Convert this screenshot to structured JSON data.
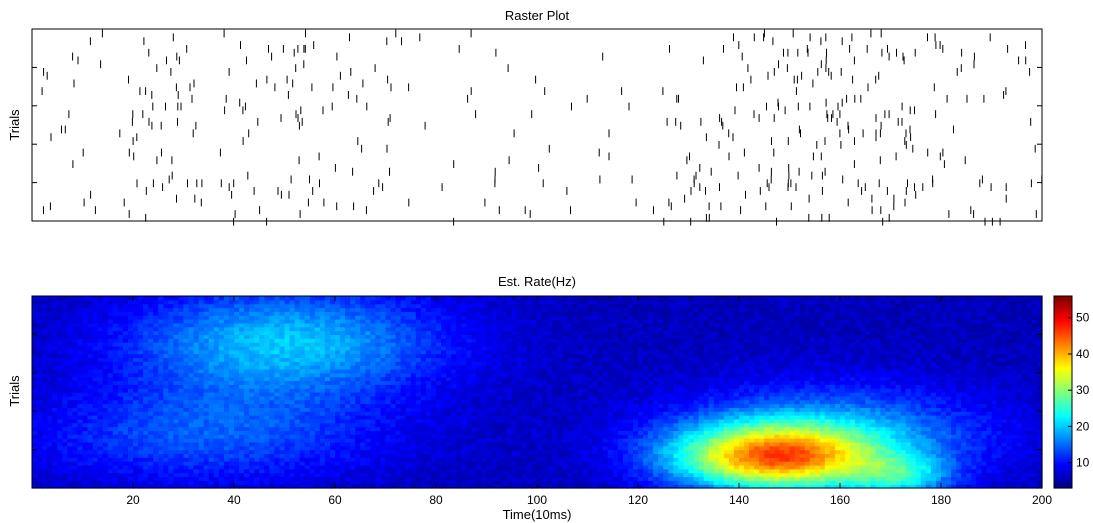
{
  "chart_data": [
    {
      "type": "raster",
      "title": "Raster Plot",
      "xlabel": "",
      "ylabel": "Trials",
      "xlim": [
        0,
        200
      ],
      "ylim": [
        0,
        50
      ],
      "yticks": [
        10,
        20,
        30,
        40
      ],
      "ytick_labels": [
        "",
        "",
        "",
        ""
      ],
      "xtick_labels": [],
      "grid": false,
      "spike_density_by_bin": [
        {
          "x_range": [
            0,
            20
          ],
          "rel": 0.25
        },
        {
          "x_range": [
            20,
            40
          ],
          "rel": 0.45
        },
        {
          "x_range": [
            40,
            60
          ],
          "rel": 0.55
        },
        {
          "x_range": [
            60,
            75
          ],
          "rel": 0.5
        },
        {
          "x_range": [
            75,
            100
          ],
          "rel": 0.15
        },
        {
          "x_range": [
            100,
            125
          ],
          "rel": 0.12
        },
        {
          "x_range": [
            125,
            145
          ],
          "rel": 0.55
        },
        {
          "x_range": [
            145,
            175
          ],
          "rel": 0.8
        },
        {
          "x_range": [
            175,
            200
          ],
          "rel": 0.3
        }
      ]
    },
    {
      "type": "heatmap",
      "title": "Est. Rate(Hz)",
      "xlabel": "Time(10ms)",
      "ylabel": "Trials",
      "xlim": [
        0,
        200
      ],
      "ylim": [
        0,
        50
      ],
      "xticks": [
        20,
        40,
        60,
        80,
        100,
        120,
        140,
        160,
        180,
        200
      ],
      "xtick_labels": [
        "20",
        "40",
        "60",
        "80",
        "100",
        "120",
        "140",
        "160",
        "180",
        "200"
      ],
      "yticks": [
        10,
        20,
        30,
        40
      ],
      "ytick_labels": [
        "",
        "",
        "",
        ""
      ],
      "colormap": "jet",
      "colorbar": {
        "clim": [
          3,
          56
        ],
        "ticks": [
          10,
          20,
          30,
          40,
          50
        ],
        "tick_labels": [
          "10",
          "20",
          "30",
          "40",
          "50"
        ]
      },
      "rate_components": [
        {
          "x": 50,
          "y": 38,
          "sx": 22,
          "sy": 10,
          "amp": 14
        },
        {
          "x": 35,
          "y": 14,
          "sx": 25,
          "sy": 9,
          "amp": 8
        },
        {
          "x": 147,
          "y": 8,
          "sx": 14,
          "sy": 6,
          "amp": 32
        },
        {
          "x": 172,
          "y": 3,
          "sx": 7,
          "sy": 4,
          "amp": 12
        },
        {
          "x": 158,
          "y": 14,
          "sx": 22,
          "sy": 9,
          "amp": 12
        }
      ],
      "baseline_rate": 6
    }
  ]
}
